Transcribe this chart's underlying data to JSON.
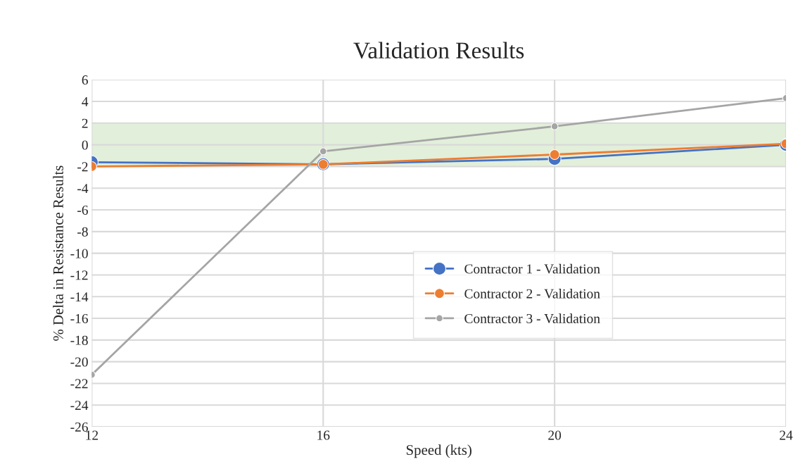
{
  "chart_data": {
    "type": "line",
    "title": "Validation Results",
    "xlabel": "Speed (kts)",
    "ylabel": "% Delta in Resistance Results",
    "x": [
      12,
      16,
      20,
      24
    ],
    "series": [
      {
        "name": "Contractor 1 - Validation",
        "color": "#4472c4",
        "values": [
          -1.6,
          -1.8,
          -1.3,
          0.0
        ]
      },
      {
        "name": "Contractor 2 - Validation",
        "color": "#ed7d31",
        "values": [
          -2.0,
          -1.8,
          -0.9,
          0.1
        ]
      },
      {
        "name": "Contractor 3 - Validation",
        "color": "#a5a5a5",
        "values": [
          -21.2,
          -0.6,
          1.7,
          4.3
        ]
      }
    ],
    "xlim": [
      12,
      24
    ],
    "xticks": [
      12,
      16,
      20,
      24
    ],
    "ylim": [
      -26,
      6
    ],
    "yticks": [
      -26,
      -24,
      -22,
      -20,
      -18,
      -16,
      -14,
      -12,
      -10,
      -8,
      -6,
      -4,
      -2,
      0,
      2,
      4,
      6
    ],
    "bands": [
      {
        "axis": "y",
        "from": -2,
        "to": 2,
        "color": "#e2efda"
      }
    ],
    "grid": true,
    "legend": "right",
    "marker": "circle",
    "line_style": "solid"
  }
}
